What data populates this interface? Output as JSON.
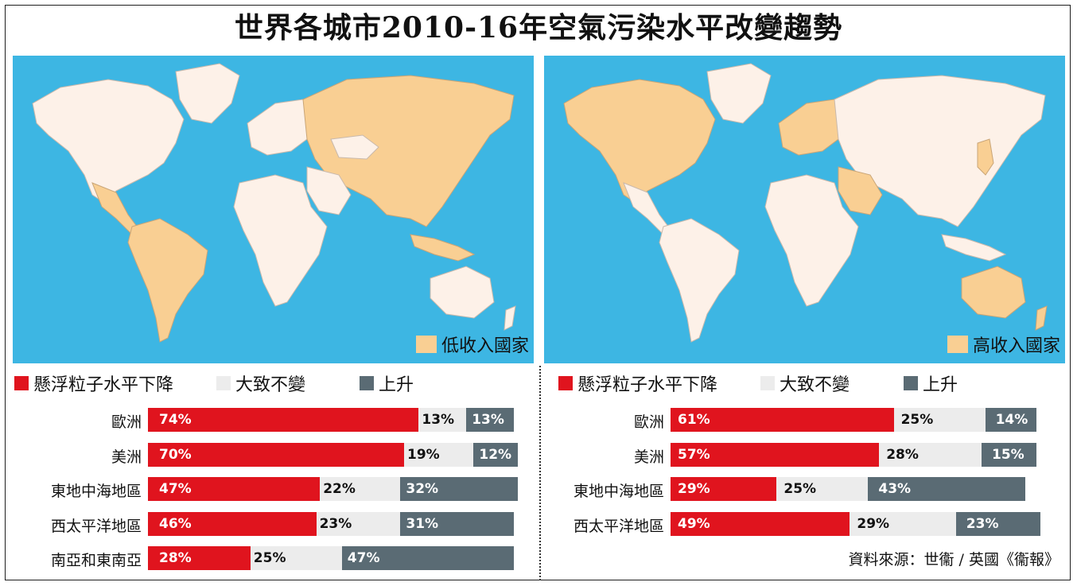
{
  "title": "世界各城市2010-16年空氣污染水平改變趨勢",
  "colors": {
    "ocean": "#3db6e3",
    "land_highlight": "#f9cf93",
    "land_other": "#fdf1e8",
    "decline": "#e0141e",
    "stable": "#ececec",
    "rise": "#5a6b74"
  },
  "left_map_legend": "低收入國家",
  "right_map_legend": "高收入國家",
  "legend": {
    "decline": "懸浮粒子水平下降",
    "stable": "大致不變",
    "rise": "上升"
  },
  "source": "資料來源：世衞 / 英國《衞報》",
  "chart_data": [
    {
      "type": "bar",
      "stacked": true,
      "orientation": "horizontal",
      "group": "低收入國家",
      "categories": [
        "歐洲",
        "美洲",
        "東地中海地區",
        "西太平洋地區",
        "南亞和東南亞"
      ],
      "series": [
        {
          "name": "懸浮粒子水平下降",
          "values": [
            74,
            70,
            47,
            46,
            28
          ]
        },
        {
          "name": "大致不變",
          "values": [
            13,
            19,
            22,
            23,
            25
          ]
        },
        {
          "name": "上升",
          "values": [
            13,
            12,
            32,
            31,
            47
          ]
        }
      ],
      "labels": [
        [
          "74%",
          "13%",
          "13%"
        ],
        [
          "70%",
          "19%",
          "12%"
        ],
        [
          "47%",
          "22%",
          "32%"
        ],
        [
          "46%",
          "23%",
          "31%"
        ],
        [
          "28%",
          "25%",
          "47%"
        ]
      ]
    },
    {
      "type": "bar",
      "stacked": true,
      "orientation": "horizontal",
      "group": "高收入國家",
      "categories": [
        "歐洲",
        "美洲",
        "東地中海地區",
        "西太平洋地區"
      ],
      "series": [
        {
          "name": "懸浮粒子水平下降",
          "values": [
            61,
            57,
            29,
            49
          ]
        },
        {
          "name": "大致不變",
          "values": [
            25,
            28,
            25,
            29
          ]
        },
        {
          "name": "上升",
          "values": [
            14,
            15,
            43,
            23
          ]
        }
      ],
      "labels": [
        [
          "61%",
          "25%",
          "14%"
        ],
        [
          "57%",
          "28%",
          "15%"
        ],
        [
          "29%",
          "25%",
          "43%"
        ],
        [
          "49%",
          "29%",
          "23%"
        ]
      ]
    }
  ]
}
